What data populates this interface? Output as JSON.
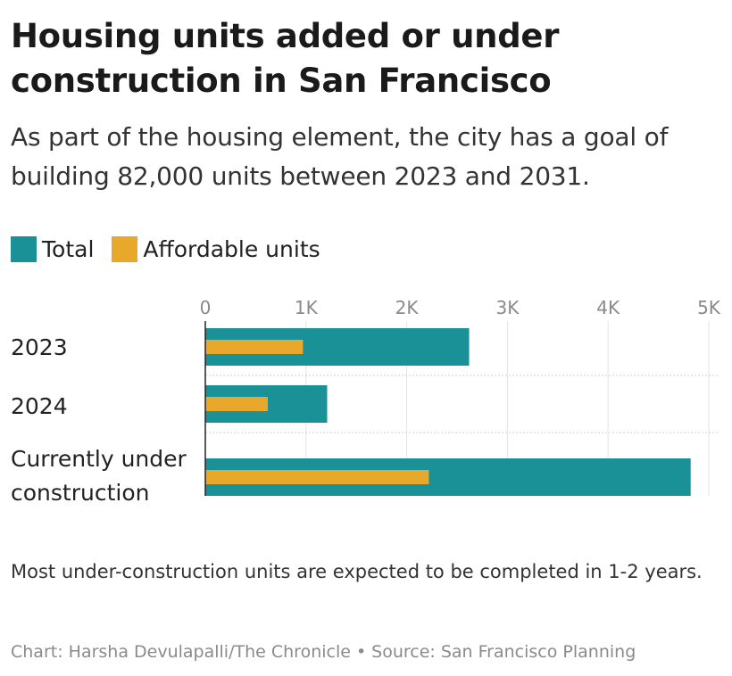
{
  "title": "Housing units added or under construction in San Francisco",
  "subtitle": "As part of the housing element, the city has a goal of building 82,000 units between 2023 and 2031.",
  "legend": [
    {
      "label": "Total",
      "color": "#1a9197"
    },
    {
      "label": "Affordable units",
      "color": "#e8a82c"
    }
  ],
  "note": "Most under-construction units are expected to be completed in 1-2 years.",
  "credit": {
    "chart": "Chart: Harsha Devulapalli/The Chronicle",
    "separator": "•",
    "source": "Source: San Francisco Planning"
  },
  "chart_data": {
    "type": "bar",
    "orientation": "horizontal",
    "categories": [
      "2023",
      "2024",
      "Currently under construction"
    ],
    "category_lines": [
      [
        "2023"
      ],
      [
        "2024"
      ],
      [
        "Currently under",
        "construction"
      ]
    ],
    "series": [
      {
        "name": "Total",
        "color": "#1a9197",
        "values": [
          2620,
          1210,
          4820
        ]
      },
      {
        "name": "Affordable units",
        "color": "#e8a82c",
        "values": [
          970,
          620,
          2220
        ]
      }
    ],
    "xlim": [
      0,
      5000
    ],
    "ticks": [
      0,
      1000,
      2000,
      3000,
      4000,
      5000
    ],
    "tick_labels": [
      "0",
      "1K",
      "2K",
      "3K",
      "4K",
      "5K"
    ],
    "grid": true,
    "legend_position": "top-left"
  }
}
